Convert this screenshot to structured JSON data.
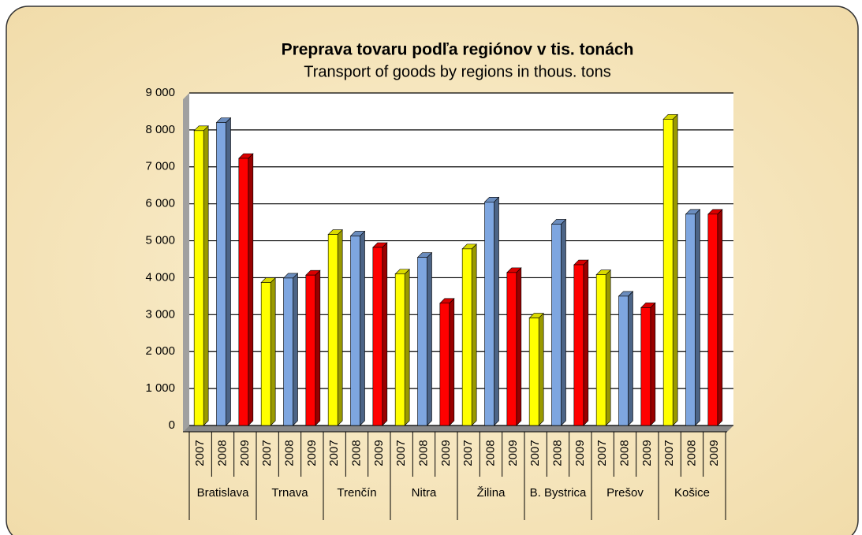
{
  "chart_data": {
    "type": "bar",
    "title": "Preprava tovaru podľa regiónov v tis. tonách",
    "subtitle": "Transport of goods by regions in thous. tons",
    "categories": [
      "Bratislava",
      "Trnava",
      "Trenčín",
      "Nitra",
      "Žilina",
      "B. Bystrica",
      "Prešov",
      "Košice"
    ],
    "series": [
      {
        "name": "2007",
        "color": "#ffff00",
        "values": [
          7980,
          3870,
          5170,
          4100,
          4780,
          2910,
          4080,
          8290
        ]
      },
      {
        "name": "2008",
        "color": "#7ea6e0",
        "values": [
          8200,
          3990,
          5130,
          4550,
          6050,
          5450,
          3500,
          5720
        ]
      },
      {
        "name": "2009",
        "color": "#ff0000",
        "values": [
          7230,
          4070,
          4820,
          3310,
          4140,
          4350,
          3190,
          5720
        ]
      }
    ],
    "ylim": [
      0,
      9000
    ],
    "yticks": [
      0,
      {
        "value": 1000,
        "label": "1 000"
      },
      {
        "value": 2000,
        "label": "2 000"
      },
      {
        "value": 3000,
        "label": "3 000"
      },
      {
        "value": 4000,
        "label": "4 000"
      },
      {
        "value": 5000,
        "label": "5 000"
      },
      {
        "value": 6000,
        "label": "6 000"
      },
      {
        "value": 7000,
        "label": "7 000"
      },
      {
        "value": 8000,
        "label": "8 000"
      },
      {
        "value": 9000,
        "label": "9 000"
      }
    ],
    "grid": true
  }
}
